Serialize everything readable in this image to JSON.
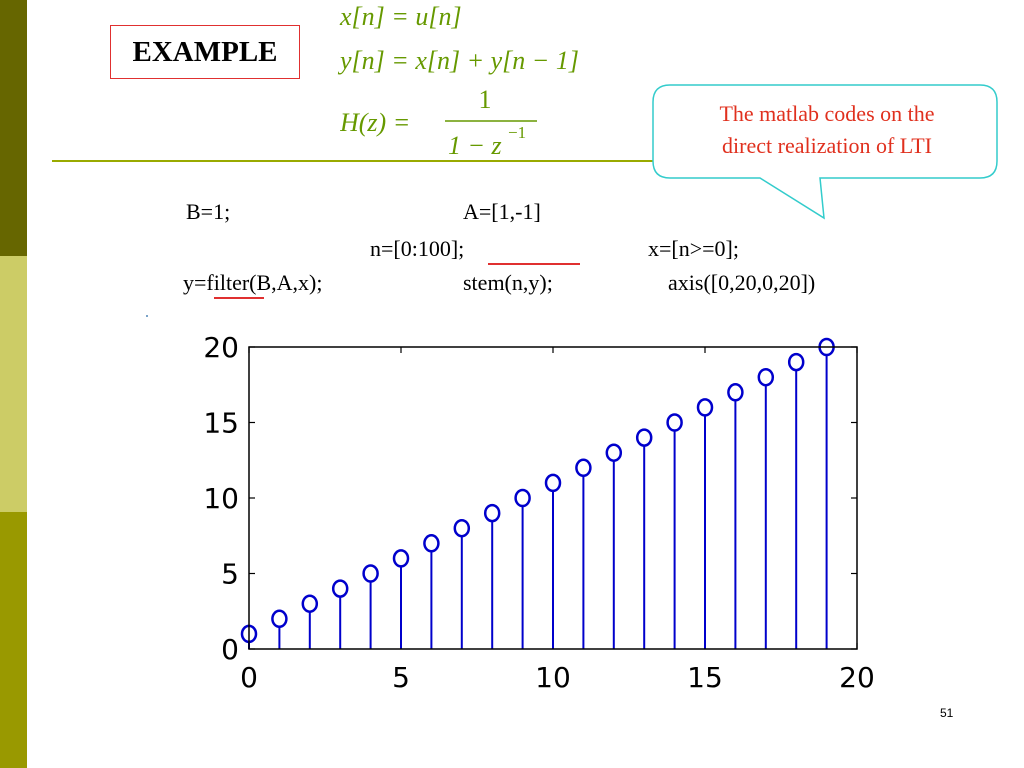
{
  "slide": {
    "title": "EXAMPLE",
    "equations": {
      "eq1": "x[n] = u[n]",
      "eq2": "y[n] = x[n] + y[n − 1]",
      "eq3_lhs": "H(z) =",
      "eq3_num": "1",
      "eq3_den": "1 − z",
      "eq3_exp": "−1"
    },
    "callout": {
      "line1": "The matlab codes on the",
      "line2": "direct realization of LTI"
    },
    "code": {
      "b": "B=1;",
      "a": "A=[1,-1]",
      "n": "n=[0:100];",
      "x": "x=[n>=0];",
      "y": "y=filter(B,A,x);",
      "stem": "stem(n,y);",
      "axis": "axis([0,20,0,20])"
    },
    "page_number": "51"
  },
  "colors": {
    "sidebar_dark": "#666600",
    "sidebar_light": "#cccc66",
    "sidebar_mid": "#999900",
    "equation": "#669900",
    "callout_text": "#e0301e",
    "callout_border": "#33cccc",
    "stem": "#0000cc"
  },
  "chart_data": {
    "type": "stem",
    "x": [
      0,
      1,
      2,
      3,
      4,
      5,
      6,
      7,
      8,
      9,
      10,
      11,
      12,
      13,
      14,
      15,
      16,
      17,
      18,
      19
    ],
    "y": [
      1,
      2,
      3,
      4,
      5,
      6,
      7,
      8,
      9,
      10,
      11,
      12,
      13,
      14,
      15,
      16,
      17,
      18,
      19,
      20
    ],
    "xlim": [
      0,
      20
    ],
    "ylim": [
      0,
      20
    ],
    "xticks": [
      "0",
      "5",
      "10",
      "15",
      "20"
    ],
    "yticks": [
      "0",
      "5",
      "10",
      "15",
      "20"
    ],
    "grid": false
  }
}
